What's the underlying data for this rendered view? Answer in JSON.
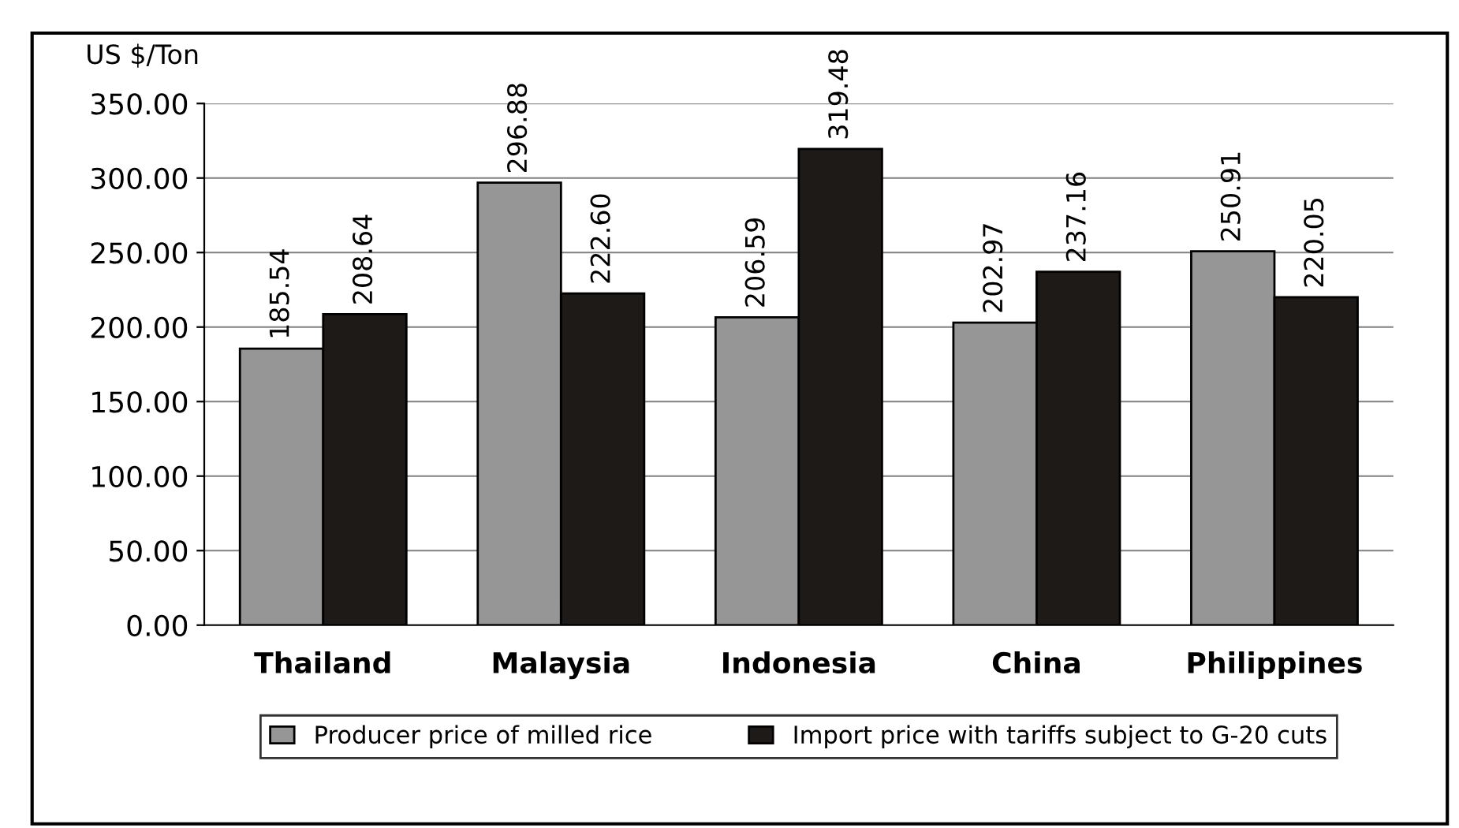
{
  "chart_data": {
    "type": "bar",
    "ylabel": "US $/Ton",
    "categories": [
      "Thailand",
      "Malaysia",
      "Indonesia",
      "China",
      "Philippines"
    ],
    "series": [
      {
        "name": "Producer price of milled rice",
        "color": "#969696",
        "values": [
          185.54,
          296.88,
          206.59,
          202.97,
          250.91
        ]
      },
      {
        "name": "Import price with tariffs subject to G-20 cuts",
        "color": "#1e1a18",
        "values": [
          208.64,
          222.6,
          319.48,
          237.16,
          220.05
        ]
      }
    ],
    "value_labels": [
      [
        "185.54",
        "296.88",
        "206.59",
        "202.97",
        "250.91"
      ],
      [
        "208.64",
        "222.60",
        "319.48",
        "237.16",
        "220.05"
      ]
    ],
    "ylim": [
      0,
      350
    ],
    "yticks": [
      {
        "value": 0,
        "label": "0.00"
      },
      {
        "value": 50,
        "label": "50.00"
      },
      {
        "value": 100,
        "label": "100.00"
      },
      {
        "value": 150,
        "label": "150.00"
      },
      {
        "value": 200,
        "label": "200.00"
      },
      {
        "value": 250,
        "label": "250.00"
      },
      {
        "value": 300,
        "label": "300.00"
      },
      {
        "value": 350,
        "label": "350.00"
      }
    ],
    "grid": "y",
    "legend": "bottom"
  }
}
